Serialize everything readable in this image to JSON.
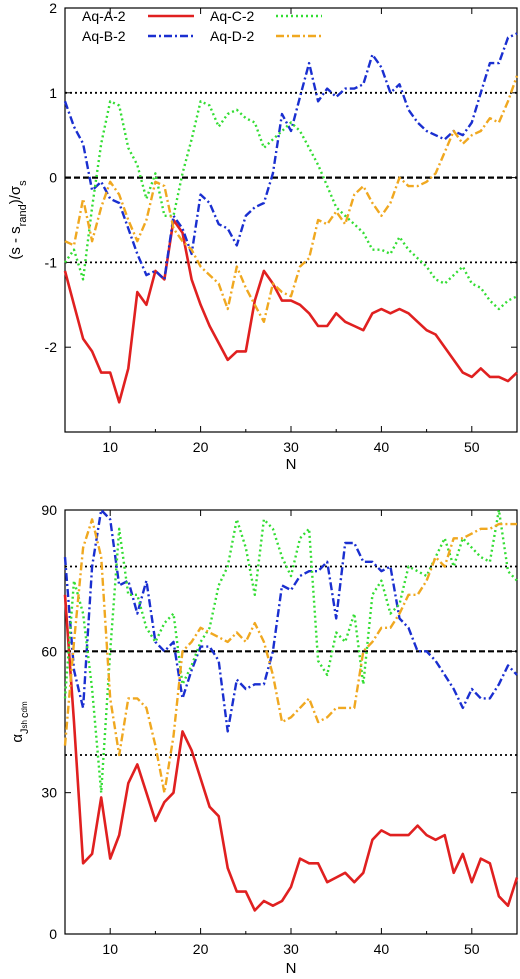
{
  "chart_data": [
    {
      "type": "line",
      "xlabel": "N",
      "ylabel": "(s - s_rand)/σ_s",
      "xlim": [
        5,
        55
      ],
      "ylim": [
        -3,
        2
      ],
      "xticks": [
        10,
        20,
        30,
        40,
        50
      ],
      "yticks": [
        -2,
        -1,
        0,
        1,
        2
      ],
      "ref_lines": [
        {
          "y": 1,
          "style": "dotted"
        },
        {
          "y": 0,
          "style": "dashed"
        },
        {
          "y": -1,
          "style": "dotted"
        }
      ],
      "legend_position": "top",
      "series": [
        {
          "name": "Aq-A-2",
          "color": "#e02020",
          "dash": "solid",
          "x": [
            5,
            6,
            7,
            8,
            9,
            10,
            11,
            12,
            13,
            14,
            15,
            16,
            17,
            18,
            19,
            20,
            21,
            22,
            23,
            24,
            25,
            26,
            27,
            28,
            29,
            30,
            31,
            32,
            33,
            34,
            35,
            36,
            37,
            38,
            39,
            40,
            41,
            42,
            43,
            44,
            45,
            46,
            47,
            48,
            49,
            50,
            51,
            52,
            53,
            54,
            55
          ],
          "y": [
            -1.1,
            -1.5,
            -1.9,
            -2.05,
            -2.3,
            -2.3,
            -2.65,
            -2.25,
            -1.35,
            -1.5,
            -1.1,
            -1.2,
            -0.5,
            -0.65,
            -1.2,
            -1.5,
            -1.75,
            -1.95,
            -2.15,
            -2.05,
            -2.05,
            -1.45,
            -1.1,
            -1.25,
            -1.45,
            -1.45,
            -1.5,
            -1.6,
            -1.75,
            -1.75,
            -1.6,
            -1.7,
            -1.75,
            -1.8,
            -1.6,
            -1.55,
            -1.6,
            -1.55,
            -1.6,
            -1.7,
            -1.8,
            -1.85,
            -2.0,
            -2.15,
            -2.3,
            -2.35,
            -2.25,
            -2.35,
            -2.35,
            -2.4,
            -2.3
          ]
        },
        {
          "name": "Aq-B-2",
          "color": "#1a2fd0",
          "dash": "dashdot",
          "x": [
            5,
            6,
            7,
            8,
            9,
            10,
            11,
            12,
            13,
            14,
            15,
            16,
            17,
            18,
            19,
            20,
            21,
            22,
            23,
            24,
            25,
            26,
            27,
            28,
            29,
            30,
            31,
            32,
            33,
            34,
            35,
            36,
            37,
            38,
            39,
            40,
            41,
            42,
            43,
            44,
            45,
            46,
            47,
            48,
            49,
            50,
            51,
            52,
            53,
            54,
            55
          ],
          "y": [
            0.9,
            0.6,
            0.4,
            -0.15,
            -0.05,
            -0.25,
            -0.3,
            -0.6,
            -0.9,
            -1.15,
            -1.1,
            -1.2,
            -0.45,
            -0.6,
            -0.9,
            -0.2,
            -0.3,
            -0.55,
            -0.6,
            -0.8,
            -0.45,
            -0.35,
            -0.3,
            0.05,
            0.75,
            0.55,
            0.95,
            1.35,
            0.9,
            1.05,
            0.95,
            1.05,
            1.05,
            1.1,
            1.45,
            1.3,
            1.0,
            1.1,
            0.8,
            0.65,
            0.55,
            0.5,
            0.45,
            0.55,
            0.5,
            0.65,
            1.0,
            1.35,
            1.35,
            1.65,
            1.7
          ]
        },
        {
          "name": "Aq-C-2",
          "color": "#33dd33",
          "dash": "dotted",
          "x": [
            5,
            6,
            7,
            8,
            9,
            10,
            11,
            12,
            13,
            14,
            15,
            16,
            17,
            18,
            19,
            20,
            21,
            22,
            23,
            24,
            25,
            26,
            27,
            28,
            29,
            30,
            31,
            32,
            33,
            34,
            35,
            36,
            37,
            38,
            39,
            40,
            41,
            42,
            43,
            44,
            45,
            46,
            47,
            48,
            49,
            50,
            51,
            52,
            53,
            54,
            55
          ],
          "y": [
            -1.0,
            -0.85,
            -1.2,
            -0.35,
            0.4,
            0.9,
            0.85,
            0.35,
            0.15,
            -0.25,
            0.05,
            -0.45,
            -0.45,
            0.05,
            0.45,
            0.9,
            0.85,
            0.6,
            0.75,
            0.8,
            0.7,
            0.65,
            0.35,
            0.45,
            0.55,
            0.65,
            0.55,
            0.35,
            0.15,
            -0.1,
            -0.35,
            -0.45,
            -0.55,
            -0.65,
            -0.85,
            -0.85,
            -0.9,
            -0.7,
            -0.85,
            -0.95,
            -1.05,
            -1.2,
            -1.25,
            -1.15,
            -1.05,
            -1.25,
            -1.3,
            -1.45,
            -1.55,
            -1.45,
            -1.4
          ]
        },
        {
          "name": "Aq-D-2",
          "color": "#f0a820",
          "dash": "dashdot",
          "x": [
            5,
            6,
            7,
            8,
            9,
            10,
            11,
            12,
            13,
            14,
            15,
            16,
            17,
            18,
            19,
            20,
            21,
            22,
            23,
            24,
            25,
            26,
            27,
            28,
            29,
            30,
            31,
            32,
            33,
            34,
            35,
            36,
            37,
            38,
            39,
            40,
            41,
            42,
            43,
            44,
            45,
            46,
            47,
            48,
            49,
            50,
            51,
            52,
            53,
            54,
            55
          ],
          "y": [
            -0.75,
            -0.8,
            -0.25,
            -0.75,
            -0.35,
            -0.05,
            -0.2,
            -0.5,
            -0.75,
            -0.5,
            -0.05,
            -0.1,
            -0.6,
            -0.75,
            -0.85,
            -1.05,
            -1.15,
            -1.25,
            -1.55,
            -1.05,
            -1.3,
            -1.5,
            -1.7,
            -1.25,
            -1.35,
            -1.4,
            -1.05,
            -0.95,
            -0.5,
            -0.55,
            -0.4,
            -0.55,
            -0.2,
            -0.1,
            -0.3,
            -0.45,
            -0.3,
            0.0,
            -0.1,
            -0.1,
            -0.05,
            0.05,
            0.3,
            0.55,
            0.4,
            0.5,
            0.55,
            0.7,
            0.65,
            0.9,
            1.2
          ]
        }
      ]
    },
    {
      "type": "line",
      "xlabel": "N",
      "ylabel": "α_{J_sh c_dm}",
      "xlim": [
        5,
        55
      ],
      "ylim": [
        0,
        90
      ],
      "xticks": [
        10,
        20,
        30,
        40,
        50
      ],
      "yticks": [
        0,
        30,
        60,
        90
      ],
      "ref_lines": [
        {
          "y": 78,
          "style": "dotted"
        },
        {
          "y": 60,
          "style": "dashed"
        },
        {
          "y": 38,
          "style": "dotted"
        }
      ],
      "series": [
        {
          "name": "Aq-A-2",
          "color": "#e02020",
          "dash": "solid",
          "x": [
            5,
            6,
            7,
            8,
            9,
            10,
            11,
            12,
            13,
            14,
            15,
            16,
            17,
            18,
            19,
            20,
            21,
            22,
            23,
            24,
            25,
            26,
            27,
            28,
            29,
            30,
            31,
            32,
            33,
            34,
            35,
            36,
            37,
            38,
            39,
            40,
            41,
            42,
            43,
            44,
            45,
            46,
            47,
            48,
            49,
            50,
            51,
            52,
            53,
            54,
            55
          ],
          "y": [
            72,
            45,
            15,
            17,
            29,
            16,
            21,
            32,
            36,
            30,
            24,
            28,
            30,
            43,
            39,
            33,
            27,
            25,
            14,
            9,
            9,
            5,
            7,
            6,
            7,
            10,
            16,
            15,
            15,
            11,
            12,
            13,
            11,
            13,
            20,
            22,
            21,
            21,
            21,
            23,
            21,
            20,
            21,
            13,
            17,
            11,
            16,
            15,
            8,
            6,
            12
          ]
        },
        {
          "name": "Aq-B-2",
          "color": "#1a2fd0",
          "dash": "dashdot",
          "x": [
            5,
            6,
            7,
            8,
            9,
            10,
            11,
            12,
            13,
            14,
            15,
            16,
            17,
            18,
            19,
            20,
            21,
            22,
            23,
            24,
            25,
            26,
            27,
            28,
            29,
            30,
            31,
            32,
            33,
            34,
            35,
            36,
            37,
            38,
            39,
            40,
            41,
            42,
            43,
            44,
            45,
            46,
            47,
            48,
            49,
            50,
            51,
            52,
            53,
            54,
            55
          ],
          "y": [
            80,
            56,
            48,
            78,
            90,
            88,
            74,
            75,
            68,
            75,
            62,
            60,
            62,
            50,
            56,
            61,
            61,
            58,
            43,
            54,
            52,
            53,
            53,
            60,
            74,
            73,
            76,
            77,
            77,
            79,
            67,
            83,
            83,
            79,
            79,
            77,
            78,
            67,
            65,
            60,
            60,
            58,
            55,
            52,
            48,
            52,
            50,
            50,
            53,
            57,
            55
          ]
        },
        {
          "name": "Aq-C-2",
          "color": "#33dd33",
          "dash": "dotted",
          "x": [
            5,
            6,
            7,
            8,
            9,
            10,
            11,
            12,
            13,
            14,
            15,
            16,
            17,
            18,
            19,
            20,
            21,
            22,
            23,
            24,
            25,
            26,
            27,
            28,
            29,
            30,
            31,
            32,
            33,
            34,
            35,
            36,
            37,
            38,
            39,
            40,
            41,
            42,
            43,
            44,
            45,
            46,
            47,
            48,
            49,
            50,
            51,
            52,
            53,
            54,
            55
          ],
          "y": [
            50,
            75,
            68,
            52,
            30,
            60,
            86,
            72,
            72,
            65,
            62,
            66,
            68,
            53,
            57,
            62,
            65,
            74,
            78,
            88,
            82,
            72,
            88,
            86,
            80,
            76,
            84,
            86,
            58,
            55,
            64,
            62,
            68,
            53,
            72,
            75,
            68,
            70,
            78,
            77,
            76,
            80,
            84,
            78,
            84,
            82,
            80,
            79,
            90,
            77,
            75
          ]
        },
        {
          "name": "Aq-D-2",
          "color": "#f0a820",
          "dash": "dashdot",
          "x": [
            5,
            6,
            7,
            8,
            9,
            10,
            11,
            12,
            13,
            14,
            15,
            16,
            17,
            18,
            19,
            20,
            21,
            22,
            23,
            24,
            25,
            26,
            27,
            28,
            29,
            30,
            31,
            32,
            33,
            34,
            35,
            36,
            37,
            38,
            39,
            40,
            41,
            42,
            43,
            44,
            45,
            46,
            47,
            48,
            49,
            50,
            51,
            52,
            53,
            54,
            55
          ],
          "y": [
            40,
            62,
            82,
            88,
            80,
            50,
            38,
            50,
            50,
            48,
            40,
            30,
            42,
            60,
            62,
            65,
            64,
            63,
            62,
            64,
            62,
            66,
            62,
            55,
            45,
            46,
            48,
            50,
            45,
            46,
            48,
            48,
            48,
            60,
            62,
            65,
            65,
            68,
            72,
            72,
            75,
            80,
            78,
            84,
            84,
            85,
            86,
            86,
            87,
            87,
            87
          ]
        }
      ]
    }
  ]
}
